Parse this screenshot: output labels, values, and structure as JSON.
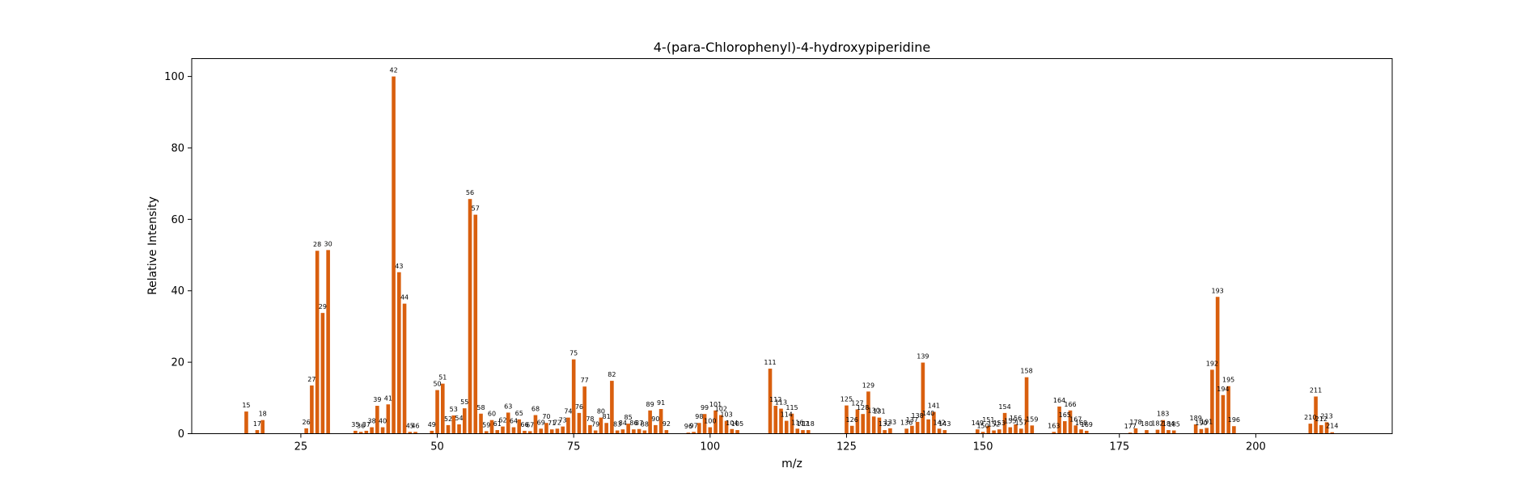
{
  "chart_data": {
    "type": "bar",
    "title": "4-(para-Chlorophenyl)-4-hydroxypiperidine",
    "xlabel": "m/z",
    "ylabel": "Relative Intensity",
    "xlim": [
      5,
      225
    ],
    "ylim": [
      0,
      105
    ],
    "xticks": [
      25,
      50,
      75,
      100,
      125,
      150,
      175,
      200
    ],
    "yticks": [
      0,
      20,
      40,
      60,
      80,
      100
    ],
    "bar_color": "#d95f0e",
    "grid": false,
    "x": [
      15,
      17,
      18,
      26,
      27,
      28,
      29,
      30,
      35,
      36,
      37,
      38,
      39,
      40,
      41,
      42,
      43,
      44,
      45,
      46,
      49,
      50,
      51,
      52,
      53,
      54,
      55,
      56,
      57,
      58,
      59,
      60,
      61,
      62,
      63,
      64,
      65,
      66,
      67,
      68,
      69,
      70,
      71,
      72,
      73,
      74,
      75,
      76,
      77,
      78,
      79,
      80,
      81,
      82,
      83,
      84,
      85,
      86,
      87,
      88,
      89,
      90,
      91,
      92,
      96,
      97,
      98,
      99,
      100,
      101,
      102,
      103,
      104,
      105,
      111,
      112,
      113,
      114,
      115,
      116,
      117,
      118,
      125,
      126,
      127,
      128,
      129,
      130,
      131,
      132,
      133,
      136,
      137,
      138,
      139,
      140,
      141,
      142,
      143,
      149,
      150,
      151,
      152,
      153,
      154,
      155,
      156,
      157,
      158,
      159,
      163,
      164,
      165,
      166,
      167,
      168,
      169,
      177,
      178,
      180,
      182,
      183,
      184,
      185,
      189,
      190,
      191,
      192,
      193,
      194,
      195,
      196,
      210,
      211,
      212,
      213,
      214
    ],
    "values": [
      6.2,
      1.0,
      3.8,
      1.5,
      13.5,
      51.2,
      33.8,
      51.4,
      0.8,
      0.5,
      0.8,
      1.8,
      7.8,
      1.8,
      8.2,
      100,
      45.2,
      36.4,
      0.5,
      0.5,
      0.8,
      12.2,
      14.0,
      2.4,
      5.1,
      2.6,
      7.1,
      65.7,
      61.3,
      5.6,
      0.7,
      3.8,
      1.0,
      2.0,
      5.9,
      1.8,
      4.0,
      0.8,
      0.7,
      5.2,
      1.4,
      3.0,
      1.2,
      1.4,
      2.0,
      4.5,
      20.8,
      5.8,
      13.2,
      2.4,
      0.9,
      4.5,
      3.0,
      14.8,
      0.9,
      1.2,
      2.8,
      1.2,
      1.3,
      0.9,
      6.5,
      2.4,
      6.9,
      1.0,
      0.3,
      0.5,
      3.0,
      5.5,
      1.8,
      6.5,
      5.2,
      3.6,
      1.3,
      1.0,
      18.2,
      7.8,
      7.0,
      3.6,
      5.6,
      1.4,
      1.0,
      1.0,
      7.9,
      2.2,
      6.8,
      5.5,
      11.8,
      4.8,
      4.5,
      1.0,
      1.5,
      1.4,
      2.2,
      3.3,
      19.9,
      4.0,
      6.1,
      1.4,
      1.0,
      1.2,
      0.5,
      2.2,
      0.9,
      1.2,
      5.8,
      1.8,
      2.6,
      1.4,
      15.8,
      2.3,
      0.5,
      7.6,
      3.5,
      6.5,
      2.3,
      1.2,
      0.8,
      0.3,
      1.5,
      1.0,
      1.1,
      3.8,
      1.0,
      0.9,
      2.6,
      1.3,
      1.6,
      17.9,
      38.3,
      10.8,
      13.3,
      2.1,
      2.8,
      10.4,
      2.4,
      3.2,
      0.4
    ]
  }
}
